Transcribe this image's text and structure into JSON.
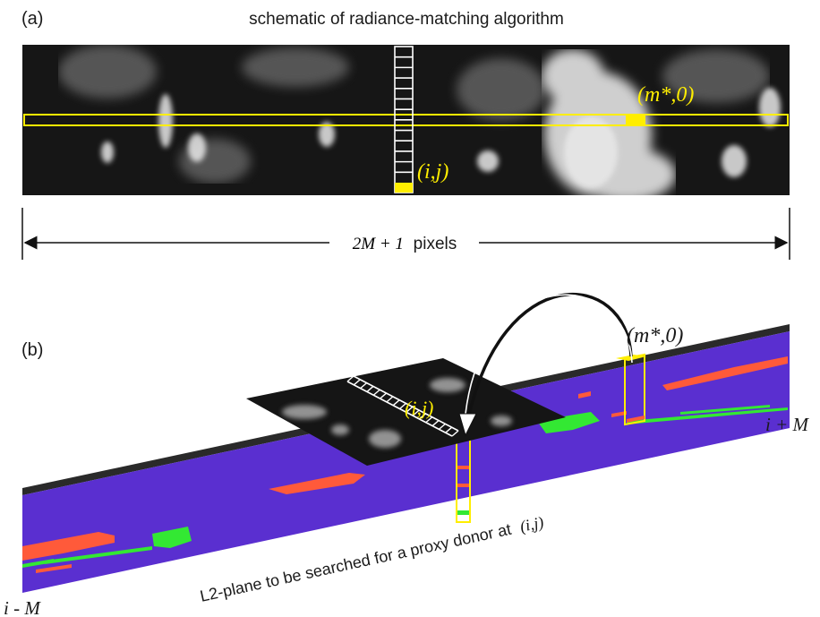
{
  "panel_a": {
    "label": "(a)",
    "title": "schematic of radiance-matching algorithm",
    "label_ij": "(i,j)",
    "label_m0": "(m*,0)",
    "dimension_math": "2M + 1",
    "dimension_text": "pixels"
  },
  "panel_b": {
    "label": "(b)",
    "label_m0": "(m*,0)",
    "label_ij": "(i,j)",
    "label_right": "i + M",
    "label_left": "i - M",
    "caption_text": "L2-plane to be searched for a proxy donor at",
    "caption_math": "(i,j)"
  },
  "colors": {
    "highlight": "#ffee00",
    "l2_plane": "#5a2fd0",
    "class_red": "#ff5a3a",
    "class_green": "#33e833",
    "image_dark": "#1b1b1b"
  }
}
